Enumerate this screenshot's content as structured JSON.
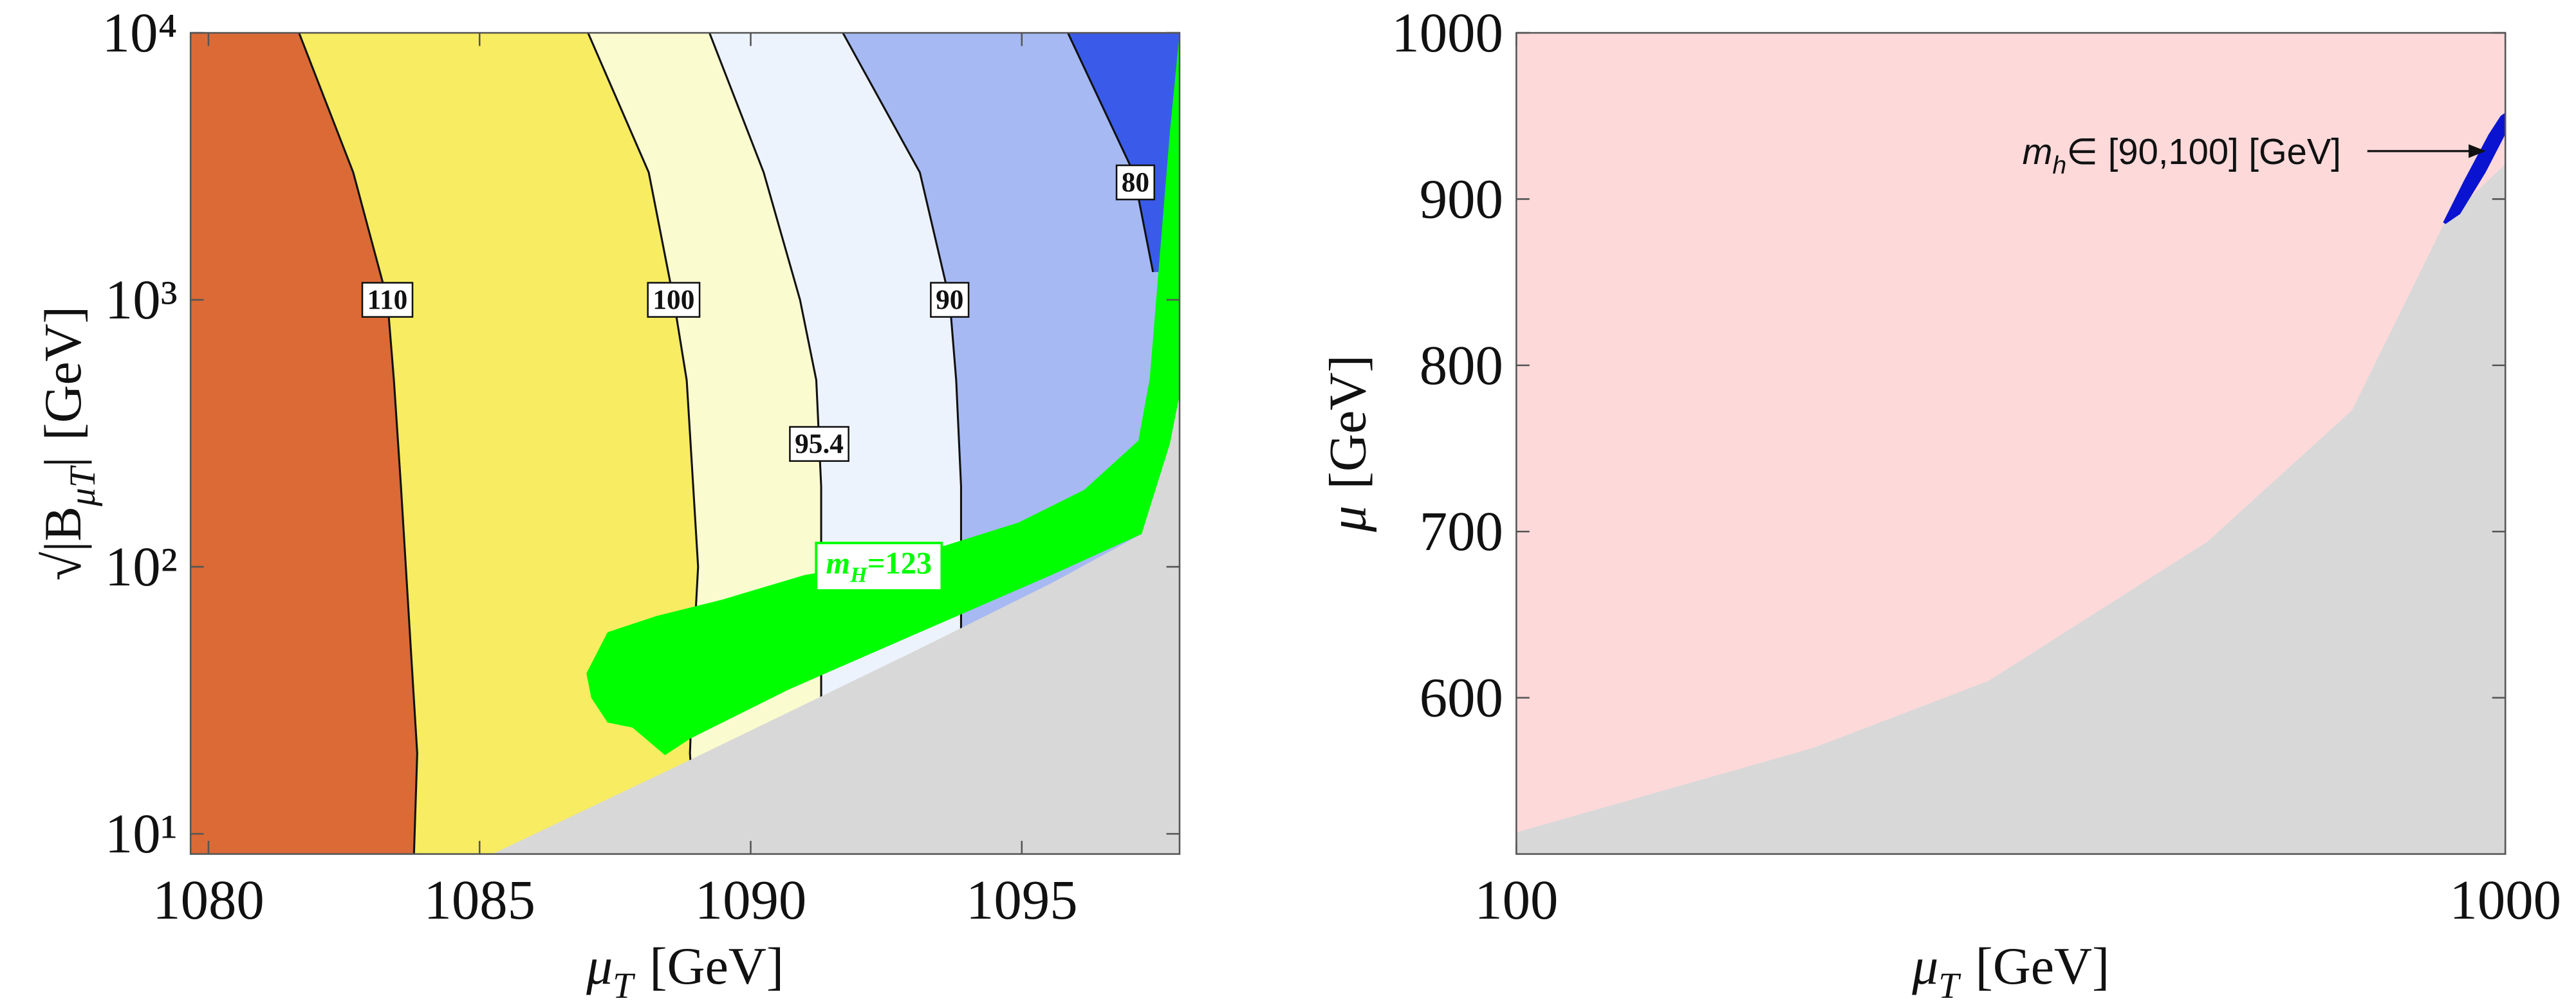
{
  "chart_data": [
    {
      "type": "contour",
      "xlabel": {
        "symbol": "μ",
        "subscript": "T",
        "unit": "[GeV]"
      },
      "ylabel": {
        "prefix": "√|B",
        "subscript": "μT",
        "suffix": "|",
        "unit": "[GeV]"
      },
      "xlim": [
        1079.67,
        1097.91
      ],
      "ylim": [
        8.4,
        10000
      ],
      "yscale": "log",
      "xticks": [
        1080,
        1085,
        1090,
        1095
      ],
      "yticks": [
        {
          "value": 10,
          "label": "10¹"
        },
        {
          "value": 100,
          "label": "10²"
        },
        {
          "value": 1000,
          "label": "10³"
        },
        {
          "value": 10000,
          "label": "10⁴"
        }
      ],
      "background": "#db6a36",
      "contours": [
        {
          "level": 110,
          "color": "#f7ec62",
          "x": [
            1083.79,
            1083.85,
            1083.73,
            1083.64,
            1083.55,
            1083.42,
            1083.3,
            1082.67,
            1081.67
          ],
          "y": [
            8.4,
            20,
            50,
            100,
            200,
            500,
            1000,
            3000,
            10000
          ]
        },
        {
          "level": 100,
          "color": "#fbfbd0",
          "x": [
            1089.0,
            1088.88,
            1088.95,
            1089.03,
            1088.94,
            1088.82,
            1088.58,
            1088.12,
            1087.0
          ],
          "y": [
            8.4,
            20,
            50,
            100,
            200,
            500,
            1000,
            3000,
            10000
          ]
        },
        {
          "level": 95.4,
          "color": "#edf3fc",
          "x": [
            1091.3,
            1091.3,
            1091.3,
            1091.3,
            1091.3,
            1091.21,
            1090.91,
            1090.24,
            1089.24
          ],
          "y": [
            8.4,
            20,
            50,
            100,
            200,
            500,
            1000,
            3000,
            10000
          ]
        },
        {
          "level": 90,
          "color": "#a6b9f3",
          "x": [
            1093.88,
            1093.88,
            1093.88,
            1093.88,
            1093.88,
            1093.79,
            1093.67,
            1093.12,
            1091.7
          ],
          "y": [
            8.4,
            20,
            50,
            100,
            200,
            500,
            1000,
            3000,
            10000
          ]
        },
        {
          "level": 80,
          "color": "#3a5be9",
          "x": [
            1097.42,
            1097.06,
            1095.85
          ],
          "y": [
            1271,
            3000,
            10000
          ]
        }
      ],
      "excluded": {
        "color": "#d8d8d8",
        "x": [
          1085.24,
          1088.88,
          1093.12,
          1095.55,
          1097.21,
          1097.91,
          1097.91
        ],
        "y": [
          8.4,
          18.9,
          49.4,
          86.9,
          132.7,
          440.6,
          8.4
        ]
      },
      "highlight": {
        "color": "#00ff00",
        "label": {
          "symbol": "m",
          "subscript": "H",
          "text": "=123"
        },
        "x": [
          1086.97,
          1087.36,
          1088.27,
          1089.48,
          1091.0,
          1092.82,
          1094.94,
          1096.15,
          1097.15,
          1097.36,
          1097.52,
          1097.73,
          1097.91,
          1097.91,
          1097.73,
          1097.21,
          1095.55,
          1093.12,
          1090.7,
          1088.88,
          1088.42,
          1087.82,
          1087.36,
          1087.06
        ],
        "y": [
          39.9,
          56.9,
          65.5,
          75.4,
          93.2,
          107.3,
          146.5,
          194.2,
          296.7,
          507.6,
          1271,
          4225,
          10000,
          440.6,
          288.4,
          132.7,
          93.2,
          56.9,
          34.7,
          22.7,
          19.7,
          25.0,
          26.1,
          32.3
        ]
      }
    },
    {
      "type": "region",
      "xlabel": {
        "symbol": "μ",
        "subscript": "T",
        "unit": "[GeV]"
      },
      "ylabel": {
        "symbol": "μ",
        "unit": "[GeV]"
      },
      "xlim": [
        100,
        1000
      ],
      "ylim": [
        506,
        1000
      ],
      "xscale": "log",
      "xticks": [
        100,
        1000
      ],
      "yticks": [
        600,
        700,
        800,
        900,
        1000
      ],
      "background": "#fdd9da",
      "excluded": {
        "color": "#d8d8d8",
        "x": [
          100,
          200,
          300,
          500,
          700,
          870,
          1000,
          1000,
          100
        ],
        "y": [
          519,
          570,
          610,
          694,
          773,
          887,
          921,
          506,
          506
        ]
      },
      "highlight": {
        "color": "#0a14d0",
        "label": {
          "symbol": "m",
          "subscript": "h",
          "text": "∈ [90,100] [GeV]"
        },
        "x": [
          865,
          908,
          962,
          989,
          1000,
          1000,
          955,
          900,
          870
        ],
        "y": [
          886,
          911,
          939,
          950,
          952,
          939,
          916,
          891,
          885
        ]
      }
    }
  ]
}
